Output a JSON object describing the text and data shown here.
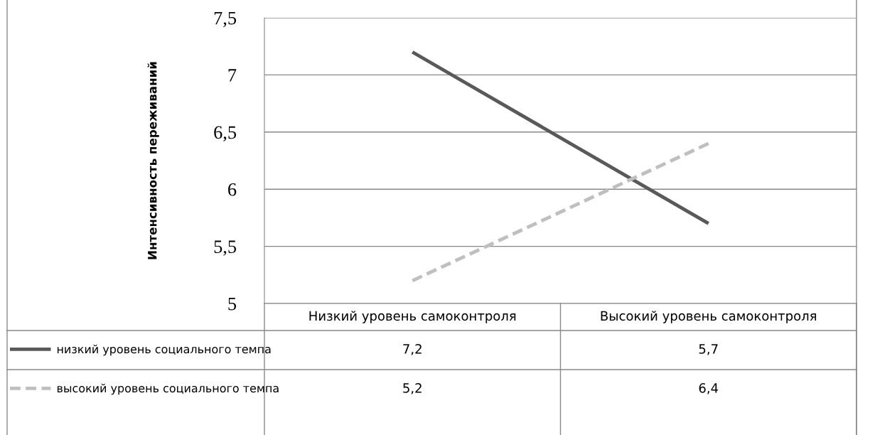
{
  "chart_data": {
    "type": "line",
    "ylabel": "Интенсивность переживаний",
    "categories": [
      "Низкий уровень самоконтроля",
      "Высокий уровень самоконтроля"
    ],
    "series": [
      {
        "name": "низкий уровень социального темпа",
        "color": "#595959",
        "line_style": "solid",
        "values": [
          7.2,
          5.7
        ],
        "value_labels": [
          "7,2",
          "5,7"
        ]
      },
      {
        "name": "высокий уровень социального темпа",
        "color": "#bfbfbf",
        "line_style": "dashed",
        "values": [
          5.2,
          6.4
        ],
        "value_labels": [
          "5,2",
          "6,4"
        ]
      }
    ],
    "ylim": [
      5,
      7.5
    ],
    "yticks": [
      5,
      {
        "value": 5.5,
        "label": "5,5"
      },
      6,
      {
        "value": 6.5,
        "label": "6,5"
      },
      7,
      {
        "value": 7.5,
        "label": "7,5"
      }
    ],
    "grid": "y",
    "legend": "bottom left",
    "marker": "none"
  }
}
